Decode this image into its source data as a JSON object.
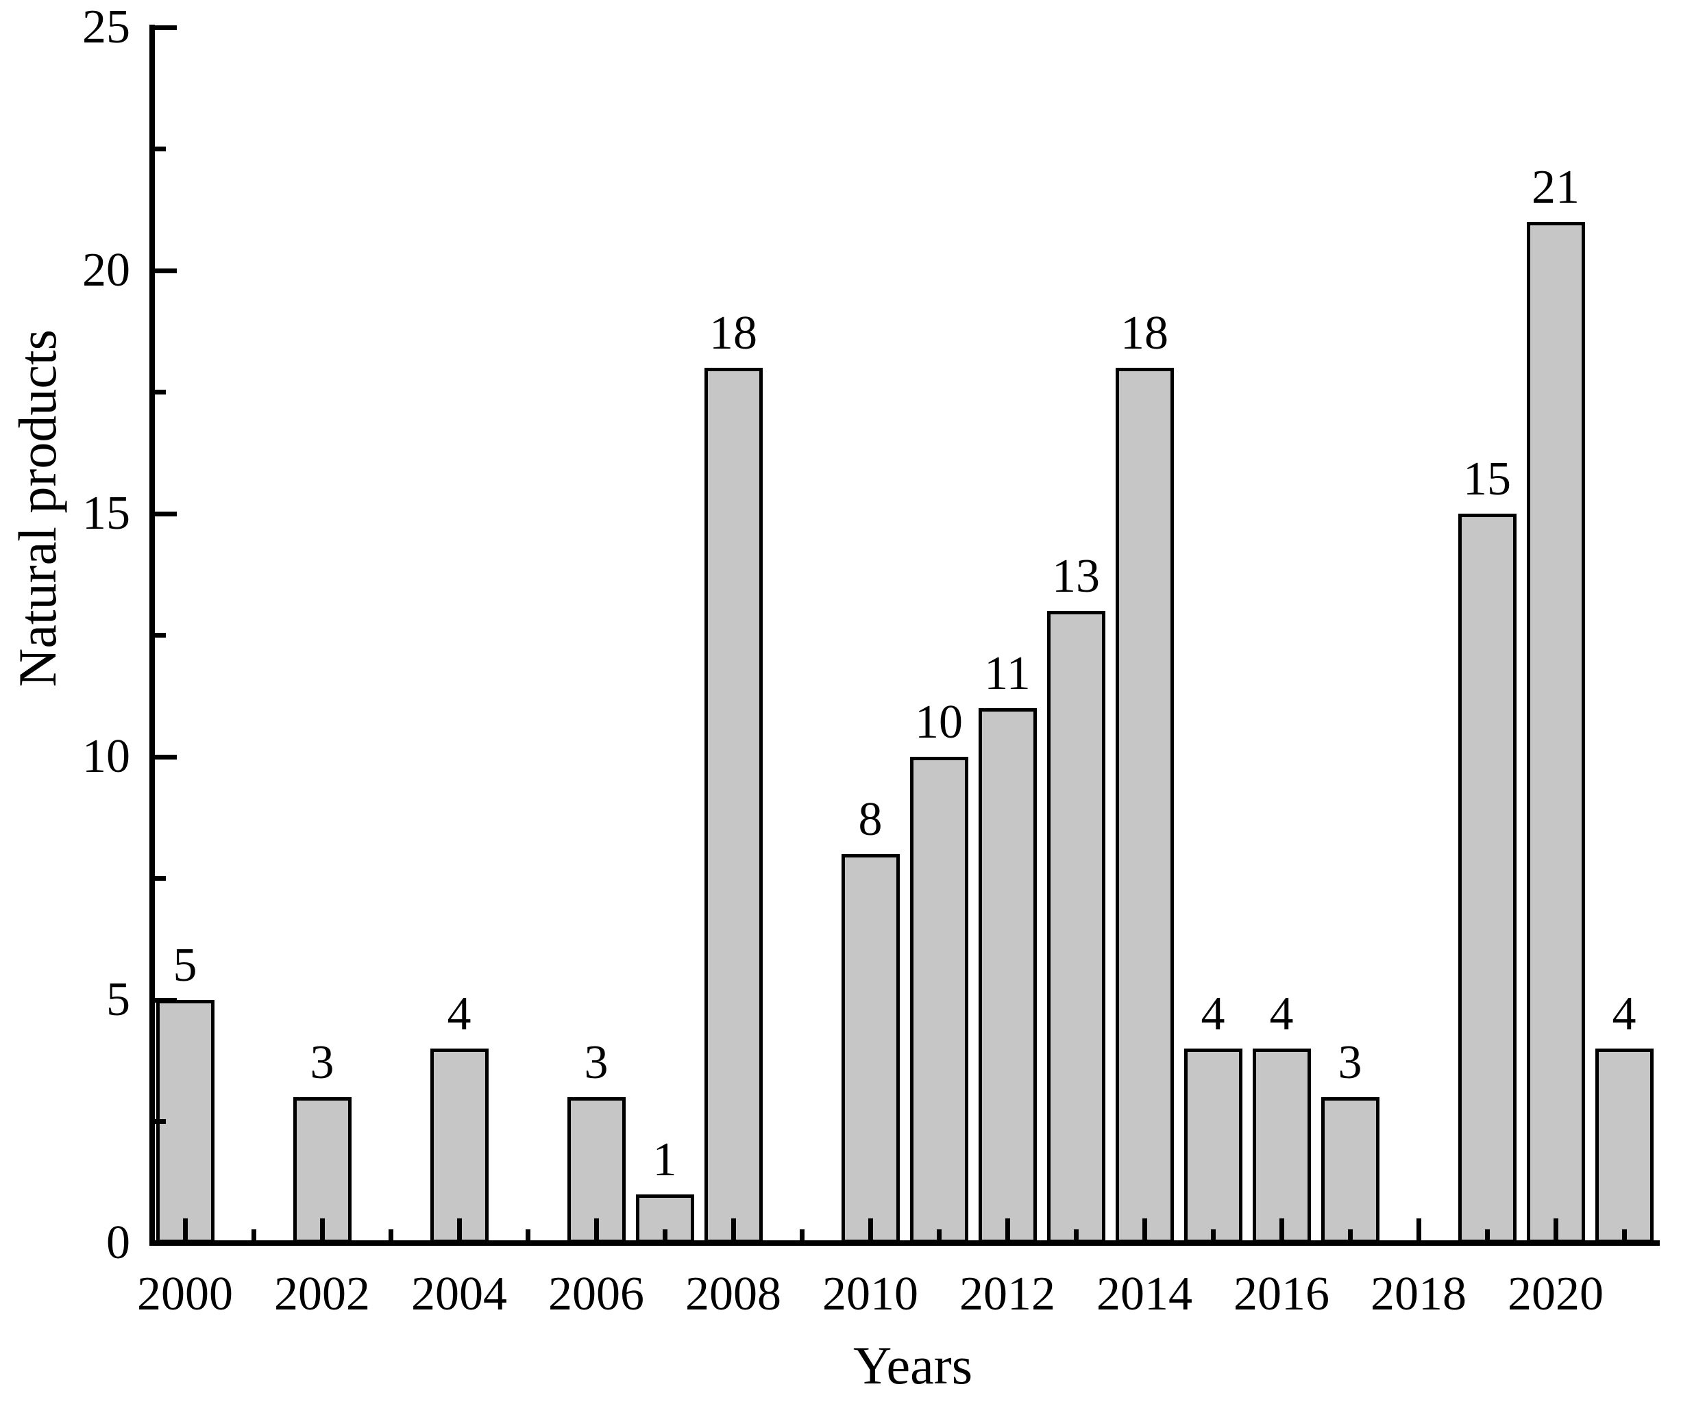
{
  "chart_data": {
    "type": "bar",
    "title": "",
    "xlabel": "Years",
    "ylabel": "Natural products",
    "categories": [
      2000,
      2002,
      2004,
      2006,
      2007,
      2008,
      2010,
      2011,
      2012,
      2013,
      2014,
      2015,
      2016,
      2017,
      2019,
      2020,
      2021
    ],
    "values": [
      5,
      3,
      4,
      3,
      1,
      18,
      8,
      10,
      11,
      13,
      18,
      4,
      4,
      3,
      15,
      21,
      4
    ],
    "years_without_bars": [
      2001,
      2003,
      2005,
      2009,
      2018
    ],
    "show_data_labels": true,
    "ylim": [
      0,
      25
    ],
    "xlim": [
      1999.5,
      2021.5
    ],
    "grid": false,
    "legend": false,
    "y_major_ticks": [
      0,
      5,
      10,
      15,
      20,
      25
    ],
    "y_minor_ticks": [
      2.5,
      7.5,
      12.5,
      17.5,
      22.5
    ],
    "y_tick_labels": [
      "0",
      "5",
      "10",
      "15",
      "20",
      "25"
    ],
    "x_major_ticks": [
      2000,
      2002,
      2004,
      2006,
      2008,
      2010,
      2012,
      2014,
      2016,
      2018,
      2020
    ],
    "x_minor_ticks": [
      2001,
      2003,
      2005,
      2007,
      2009,
      2011,
      2013,
      2015,
      2017,
      2019,
      2021
    ],
    "x_tick_labels": [
      "2000",
      "2002",
      "2004",
      "2006",
      "2008",
      "2010",
      "2012",
      "2014",
      "2016",
      "2018",
      "2020"
    ],
    "tick_style": "inward",
    "colors": {
      "bar_fill": "#c6c6c6",
      "bar_border": "#000000",
      "axis": "#000000",
      "text": "#000000",
      "background": "#ffffff"
    }
  }
}
